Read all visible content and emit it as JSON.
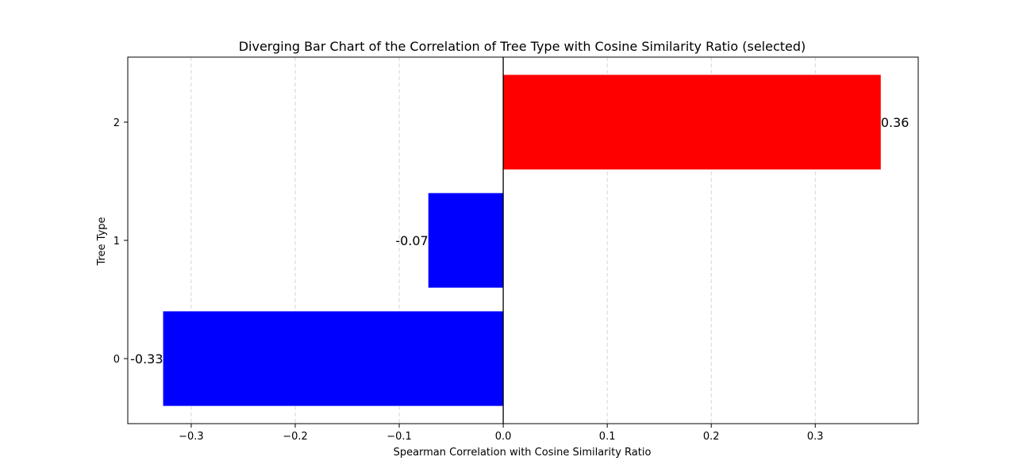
{
  "chart_data": {
    "type": "bar",
    "orientation": "horizontal",
    "title": "Diverging Bar Chart of the Correlation of Tree Type with Cosine Similarity Ratio (selected)",
    "xlabel": "Spearman Correlation with Cosine Similarity Ratio",
    "ylabel": "Tree Type",
    "categories": [
      "0",
      "1",
      "2"
    ],
    "values": [
      -0.327,
      -0.072,
      0.363
    ],
    "data_labels": [
      "-0.33",
      "-0.07",
      "0.36"
    ],
    "colors": [
      "#0000ff",
      "#0000ff",
      "#ff0000"
    ],
    "xlim": [
      -0.361,
      0.399
    ],
    "ylim": [
      -0.55,
      2.55
    ],
    "xticks": [
      -0.3,
      -0.2,
      -0.1,
      0.0,
      0.1,
      0.2,
      0.3
    ],
    "xtick_labels": [
      "−0.3",
      "−0.2",
      "−0.1",
      "0.0",
      "0.1",
      "0.2",
      "0.3"
    ],
    "yticks": [
      0,
      1,
      2
    ],
    "ytick_labels": [
      "0",
      "1",
      "2"
    ],
    "grid": "x-dashed",
    "zero_line": true
  }
}
